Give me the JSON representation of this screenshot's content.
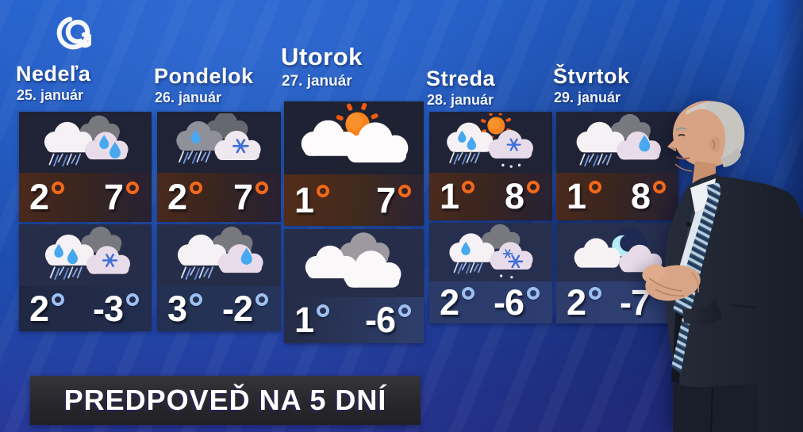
{
  "logo": {
    "name": "spiral-logo"
  },
  "banner": {
    "text": "PREDPOVEĎ NA 5 DNÍ"
  },
  "columns": [
    {
      "day_name": "Nedeľa",
      "date": "25. január",
      "day": {
        "icon": "rain-two-drops",
        "temp_left": "2",
        "temp_right": "7"
      },
      "night": {
        "icon": "rain-and-snow",
        "temp_left": "2",
        "temp_right": "-3"
      }
    },
    {
      "day_name": "Pondelok",
      "date": "26. január",
      "day": {
        "icon": "gray-rain-and-snow",
        "temp_left": "2",
        "temp_right": "7"
      },
      "night": {
        "icon": "rain-one-drop",
        "temp_left": "3",
        "temp_right": "-2"
      }
    },
    {
      "day_name": "Utorok",
      "date": "27. január",
      "highlighted": true,
      "day": {
        "icon": "partly-sunny",
        "temp_left": "1",
        "temp_right": "7"
      },
      "night": {
        "icon": "cloudy",
        "temp_left": "1",
        "temp_right": "-6"
      }
    },
    {
      "day_name": "Streda",
      "date": "28. január",
      "day": {
        "icon": "sun-rain-snow",
        "temp_left": "1",
        "temp_right": "8"
      },
      "night": {
        "icon": "rain-and-two-snow",
        "temp_left": "2",
        "temp_right": "-6"
      }
    },
    {
      "day_name": "Štvrtok",
      "date": "29. január",
      "day": {
        "icon": "rain-one-drop",
        "temp_left": "1",
        "temp_right": "8"
      },
      "night": {
        "icon": "cloudy-moon",
        "temp_left": "2",
        "temp_right": "-7"
      }
    }
  ],
  "presenter": {
    "visible": true,
    "description": "gray-haired weather presenter in dark suit, white shirt and blue striped tie"
  },
  "colors": {
    "wall-blue": "#1d53b8",
    "panel-navy": "#1f2335",
    "night-navy": "#262d49",
    "ring-day": "#f06a1e",
    "ring-night": "#9dc0f0",
    "sun-orange": "#f8821c",
    "sun-ray": "#ee5a12",
    "drop-blue": "#47a8f0",
    "snow-blue": "#3f6fd8",
    "cloud-white": "#f5f1f4",
    "cloud-pink": "#e9dcea",
    "cloud-gray": "#78787f",
    "moon-cyan": "#b5ecf8",
    "banner-bg": "#2b2b30",
    "text-white": "#ffffff"
  }
}
